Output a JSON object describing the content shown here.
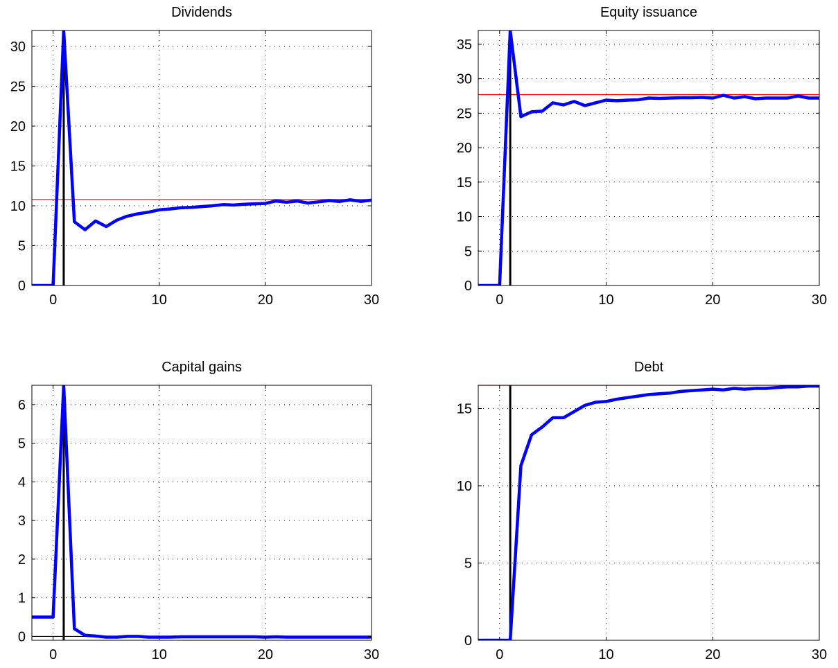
{
  "chart_data": [
    {
      "type": "line",
      "title": "Dividends",
      "xlabel": "",
      "ylabel": "",
      "xlim": [
        -2,
        30
      ],
      "ylim": [
        0,
        32
      ],
      "xticks": [
        "0",
        "10",
        "20",
        "30"
      ],
      "yticks": [
        "0",
        "5",
        "10",
        "15",
        "20",
        "25",
        "30"
      ],
      "grid": true,
      "x": [
        -2,
        -1,
        0,
        1,
        2,
        3,
        4,
        5,
        6,
        7,
        8,
        9,
        10,
        11,
        12,
        13,
        14,
        15,
        16,
        17,
        18,
        19,
        20,
        21,
        22,
        23,
        24,
        25,
        26,
        27,
        28,
        29,
        30
      ],
      "series": [
        {
          "values": [
            0,
            0,
            0,
            32,
            8,
            7,
            8.1,
            7.4,
            8.2,
            8.7,
            9.0,
            9.2,
            9.5,
            9.6,
            9.75,
            9.8,
            9.9,
            10.0,
            10.15,
            10.1,
            10.2,
            10.25,
            10.3,
            10.6,
            10.45,
            10.6,
            10.35,
            10.5,
            10.65,
            10.55,
            10.75,
            10.55,
            10.7
          ]
        }
      ],
      "reference_line": 10.8,
      "vertical_marker": 1,
      "colors": {
        "series": "#0000ff",
        "reference": "#ff0000",
        "marker": "#000000"
      }
    },
    {
      "type": "line",
      "title": "Equity issuance",
      "xlabel": "",
      "ylabel": "",
      "xlim": [
        -2,
        30
      ],
      "ylim": [
        0,
        37
      ],
      "xticks": [
        "0",
        "10",
        "20",
        "30"
      ],
      "yticks": [
        "0",
        "5",
        "10",
        "15",
        "20",
        "25",
        "30",
        "35"
      ],
      "grid": true,
      "x": [
        -2,
        -1,
        0,
        1,
        2,
        3,
        4,
        5,
        6,
        7,
        8,
        9,
        10,
        11,
        12,
        13,
        14,
        15,
        16,
        17,
        18,
        19,
        20,
        21,
        22,
        23,
        24,
        25,
        26,
        27,
        28,
        29,
        30
      ],
      "series": [
        {
          "values": [
            0,
            0,
            0,
            37,
            24.5,
            25.2,
            25.3,
            26.5,
            26.2,
            26.7,
            26.1,
            26.5,
            26.9,
            26.8,
            26.9,
            26.95,
            27.2,
            27.15,
            27.2,
            27.25,
            27.25,
            27.3,
            27.2,
            27.6,
            27.2,
            27.4,
            27.1,
            27.2,
            27.2,
            27.2,
            27.5,
            27.2,
            27.2
          ]
        }
      ],
      "reference_line": 27.7,
      "vertical_marker": 1,
      "colors": {
        "series": "#0000ff",
        "reference": "#ff0000",
        "marker": "#000000"
      }
    },
    {
      "type": "line",
      "title": "Capital gains",
      "xlabel": "",
      "ylabel": "",
      "xlim": [
        -2,
        30
      ],
      "ylim": [
        -0.1,
        6.5
      ],
      "xticks": [
        "0",
        "10",
        "20",
        "30"
      ],
      "yticks": [
        "0",
        "1",
        "2",
        "3",
        "4",
        "5",
        "6"
      ],
      "grid": true,
      "x": [
        -2,
        -1,
        0,
        1,
        2,
        3,
        4,
        5,
        6,
        7,
        8,
        9,
        10,
        11,
        12,
        13,
        14,
        15,
        16,
        17,
        18,
        19,
        20,
        21,
        22,
        23,
        24,
        25,
        26,
        27,
        28,
        29,
        30
      ],
      "series": [
        {
          "values": [
            0.5,
            0.5,
            0.5,
            6.5,
            0.2,
            0.03,
            0.01,
            -0.02,
            -0.02,
            0.0,
            0.0,
            -0.02,
            -0.02,
            -0.02,
            -0.01,
            -0.01,
            -0.01,
            -0.01,
            -0.01,
            -0.01,
            -0.01,
            -0.01,
            -0.02,
            -0.01,
            -0.02,
            -0.02,
            -0.02,
            -0.02,
            -0.02,
            -0.02,
            -0.02,
            -0.02,
            -0.02
          ]
        }
      ],
      "reference_line": 0,
      "vertical_marker": 1,
      "colors": {
        "series": "#0000ff",
        "reference": "#000000",
        "marker": "#000000"
      }
    },
    {
      "type": "line",
      "title": "Debt",
      "xlabel": "",
      "ylabel": "",
      "xlim": [
        -2,
        30
      ],
      "ylim": [
        0,
        16.5
      ],
      "xticks": [
        "0",
        "10",
        "20",
        "30"
      ],
      "yticks": [
        "0",
        "5",
        "10",
        "15"
      ],
      "grid": true,
      "x": [
        -2,
        -1,
        0,
        1,
        2,
        3,
        4,
        5,
        6,
        7,
        8,
        9,
        10,
        11,
        12,
        13,
        14,
        15,
        16,
        17,
        18,
        19,
        20,
        21,
        22,
        23,
        24,
        25,
        26,
        27,
        28,
        29,
        30
      ],
      "series": [
        {
          "values": [
            0,
            0,
            0,
            0,
            11.3,
            13.3,
            13.8,
            14.4,
            14.4,
            14.8,
            15.2,
            15.4,
            15.45,
            15.6,
            15.7,
            15.8,
            15.9,
            15.95,
            16.0,
            16.1,
            16.15,
            16.2,
            16.25,
            16.2,
            16.3,
            16.25,
            16.3,
            16.3,
            16.35,
            16.4,
            16.4,
            16.45,
            16.45
          ]
        }
      ],
      "reference_line": 16.5,
      "vertical_marker": 1,
      "colors": {
        "series": "#0000ff",
        "reference": "#ff0000",
        "marker": "#000000"
      }
    }
  ]
}
